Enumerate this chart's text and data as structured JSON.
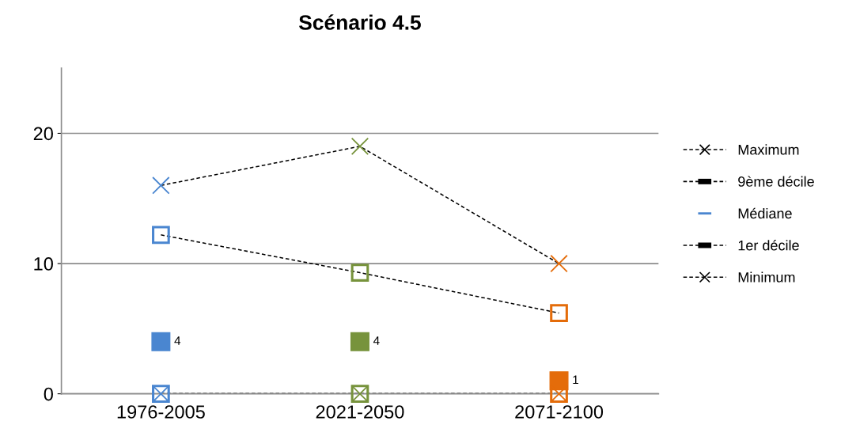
{
  "chart_data": {
    "type": "line",
    "title": "Scénario 4.5",
    "categories": [
      "1976-2005",
      "2021-2050",
      "2071-2100"
    ],
    "ylim": [
      0,
      25
    ],
    "yticks": [
      0,
      10,
      20
    ],
    "grid": "y",
    "legend": "right",
    "line_style": "dashed",
    "series": [
      {
        "name": "Maximum",
        "marker": "cross",
        "values": [
          16,
          19,
          10
        ],
        "colors": [
          "#4a86d0",
          "#77933c",
          "#e46c0a"
        ]
      },
      {
        "name": "9ème décile",
        "marker": "square",
        "values": [
          12.2,
          9.3,
          6.2
        ],
        "colors": [
          "#4a86d0",
          "#77933c",
          "#e46c0a"
        ]
      },
      {
        "name": "Médiane",
        "type": "scatter",
        "marker": "square",
        "values": [
          4,
          4,
          1
        ],
        "value_labels": [
          "4",
          "4",
          "1"
        ],
        "colors": [
          "#4a86d0",
          "#77933c",
          "#e46c0a"
        ]
      },
      {
        "name": "1er décile",
        "marker": "square",
        "values": [
          0,
          0,
          0
        ],
        "colors": [
          "#4a86d0",
          "#77933c",
          "#e46c0a"
        ]
      },
      {
        "name": "Minimum",
        "marker": "cross",
        "values": [
          0,
          0,
          0
        ],
        "colors": [
          "#4a86d0",
          "#77933c",
          "#e46c0a"
        ]
      }
    ]
  }
}
